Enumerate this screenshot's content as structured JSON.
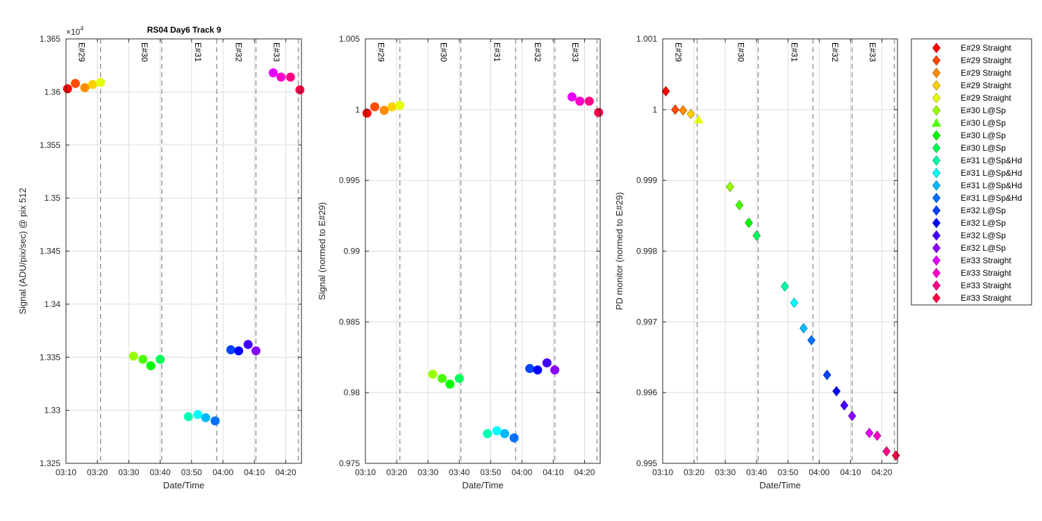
{
  "figure_title": "RS04 Day6 Track 9",
  "palette": [
    "#ff0000",
    "#ff4c00",
    "#ff8c00",
    "#ffd000",
    "#e6ff00",
    "#99ff00",
    "#4cff00",
    "#00ff00",
    "#00ff5a",
    "#00ffb0",
    "#00ffff",
    "#00b8ff",
    "#0070ff",
    "#0044ff",
    "#0000ff",
    "#4400ff",
    "#8800ff",
    "#e600ff",
    "#ff00cc",
    "#ff0088",
    "#ff0044"
  ],
  "chart_data": [
    {
      "type": "scatter",
      "title": "RS04 Day6 Track 9",
      "xlabel": "Date/Time",
      "ylabel": "Signal (ADU/pix/sec) @ pix 512",
      "exponent_label": "×10",
      "exponent_power": "4",
      "ylim": [
        1.325,
        1.365
      ],
      "yticks": [
        "1.325",
        "1.33",
        "1.335",
        "1.34",
        "1.345",
        "1.35",
        "1.355",
        "1.36",
        "1.365"
      ],
      "xlim": [
        "03:10",
        "04:25"
      ],
      "xticks": [
        "03:10",
        "03:20",
        "03:30",
        "03:40",
        "03:50",
        "04:00",
        "04:10",
        "04:20"
      ],
      "grid": true,
      "marker": "circle",
      "epochs": [
        {
          "label": "E#29",
          "label_time": "03:15",
          "boundary": "03:21"
        },
        {
          "label": "E#30",
          "label_time": "03:35",
          "boundary": "03:40.5"
        },
        {
          "label": "E#31",
          "label_time": "03:52",
          "boundary": "03:58"
        },
        {
          "label": "E#32",
          "label_time": "04:05",
          "boundary": "04:10.5"
        },
        {
          "label": "E#33",
          "label_time": "04:17",
          "boundary": "04:24"
        }
      ],
      "points": [
        {
          "t": "03:10.5",
          "y": 1.3603
        },
        {
          "t": "03:13",
          "y": 1.3608
        },
        {
          "t": "03:16",
          "y": 1.3604
        },
        {
          "t": "03:18.5",
          "y": 1.3607
        },
        {
          "t": "03:21",
          "y": 1.3609
        },
        {
          "t": "03:31.5",
          "y": 1.3351
        },
        {
          "t": "03:34.5",
          "y": 1.3348
        },
        {
          "t": "03:37",
          "y": 1.3342
        },
        {
          "t": "03:40",
          "y": 1.3348
        },
        {
          "t": "03:49",
          "y": 1.3294
        },
        {
          "t": "03:52",
          "y": 1.3296
        },
        {
          "t": "03:54.5",
          "y": 1.3293
        },
        {
          "t": "03:57.5",
          "y": 1.329
        },
        {
          "t": "04:02.5",
          "y": 1.3357
        },
        {
          "t": "04:05",
          "y": 1.3356
        },
        {
          "t": "04:08",
          "y": 1.3362
        },
        {
          "t": "04:10.5",
          "y": 1.3356
        },
        {
          "t": "04:16",
          "y": 1.3618
        },
        {
          "t": "04:18.5",
          "y": 1.3614
        },
        {
          "t": "04:21.5",
          "y": 1.3614
        },
        {
          "t": "04:24.5",
          "y": 1.3602
        }
      ]
    },
    {
      "type": "scatter",
      "xlabel": "Date/Time",
      "ylabel": "Signal (normed to E#29)",
      "ylim": [
        0.975,
        1.005
      ],
      "yticks": [
        "0.975",
        "0.98",
        "0.985",
        "0.99",
        "0.995",
        "1",
        "1.005"
      ],
      "xlim": [
        "03:10",
        "04:25"
      ],
      "xticks": [
        "03:10",
        "03:20",
        "03:30",
        "03:40",
        "03:50",
        "04:00",
        "04:10",
        "04:20"
      ],
      "grid": true,
      "marker": "circle",
      "epochs": [
        {
          "label": "E#29",
          "label_time": "03:15",
          "boundary": "03:21"
        },
        {
          "label": "E#30",
          "label_time": "03:35",
          "boundary": "03:40.5"
        },
        {
          "label": "E#31",
          "label_time": "03:52",
          "boundary": "03:58"
        },
        {
          "label": "E#32",
          "label_time": "04:05",
          "boundary": "04:10.5"
        },
        {
          "label": "E#33",
          "label_time": "04:17",
          "boundary": "04:24"
        }
      ],
      "points": [
        {
          "t": "03:10.5",
          "y": 0.99975
        },
        {
          "t": "03:13",
          "y": 1.0002
        },
        {
          "t": "03:16",
          "y": 0.99995
        },
        {
          "t": "03:18.5",
          "y": 1.0002
        },
        {
          "t": "03:21",
          "y": 1.0003
        },
        {
          "t": "03:31.5",
          "y": 0.9813
        },
        {
          "t": "03:34.5",
          "y": 0.981
        },
        {
          "t": "03:37",
          "y": 0.9806
        },
        {
          "t": "03:40",
          "y": 0.981
        },
        {
          "t": "03:49",
          "y": 0.9771
        },
        {
          "t": "03:52",
          "y": 0.9773
        },
        {
          "t": "03:54.5",
          "y": 0.9771
        },
        {
          "t": "03:57.5",
          "y": 0.9768
        },
        {
          "t": "04:02.5",
          "y": 0.9817
        },
        {
          "t": "04:05",
          "y": 0.9816
        },
        {
          "t": "04:08",
          "y": 0.9821
        },
        {
          "t": "04:10.5",
          "y": 0.9816
        },
        {
          "t": "04:16",
          "y": 1.0009
        },
        {
          "t": "04:18.5",
          "y": 1.0006
        },
        {
          "t": "04:21.5",
          "y": 1.0006
        },
        {
          "t": "04:24.5",
          "y": 0.9998
        }
      ]
    },
    {
      "type": "scatter",
      "xlabel": "Date/Time",
      "ylabel": "PD monitor (normed to E#29)",
      "ylim": [
        0.995,
        1.001
      ],
      "yticks": [
        "0.995",
        "0.996",
        "0.997",
        "0.998",
        "0.999",
        "1",
        "1.001"
      ],
      "xlim": [
        "03:10",
        "04:25"
      ],
      "xticks": [
        "03:10",
        "03:20",
        "03:30",
        "03:40",
        "03:50",
        "04:00",
        "04:10",
        "04:20"
      ],
      "grid": true,
      "marker": "diamond",
      "epochs": [
        {
          "label": "E#29",
          "label_time": "03:15",
          "boundary": "03:21"
        },
        {
          "label": "E#30",
          "label_time": "03:35",
          "boundary": "03:40.5"
        },
        {
          "label": "E#31",
          "label_time": "03:52",
          "boundary": "03:58"
        },
        {
          "label": "E#32",
          "label_time": "04:05",
          "boundary": "04:10.5"
        },
        {
          "label": "E#33",
          "label_time": "04:17",
          "boundary": "04:24"
        }
      ],
      "points": [
        {
          "t": "03:11",
          "y": 1.00026
        },
        {
          "t": "03:14",
          "y": 1.0
        },
        {
          "t": "03:16.5",
          "y": 0.99999
        },
        {
          "t": "03:19",
          "y": 0.99994
        },
        {
          "t": "03:21.5",
          "y": 0.99986,
          "marker": "triangle"
        },
        {
          "t": "03:31.5",
          "y": 0.99891
        },
        {
          "t": "03:34.5",
          "y": 0.99865
        },
        {
          "t": "03:37.5",
          "y": 0.9984
        },
        {
          "t": "03:40",
          "y": 0.99822
        },
        {
          "t": "03:49",
          "y": 0.9975
        },
        {
          "t": "03:52",
          "y": 0.99727
        },
        {
          "t": "03:55",
          "y": 0.99691
        },
        {
          "t": "03:57.5",
          "y": 0.99674
        },
        {
          "t": "04:02.5",
          "y": 0.99625
        },
        {
          "t": "04:05.5",
          "y": 0.99602
        },
        {
          "t": "04:08",
          "y": 0.99582
        },
        {
          "t": "04:10.5",
          "y": 0.99567
        },
        {
          "t": "04:16",
          "y": 0.99543
        },
        {
          "t": "04:18.5",
          "y": 0.99539
        },
        {
          "t": "04:21.5",
          "y": 0.99517
        },
        {
          "t": "04:24.5",
          "y": 0.99511
        }
      ]
    }
  ],
  "legend": {
    "placement": "right",
    "entries": [
      {
        "label": "E#29 Straight",
        "marker": "diamond"
      },
      {
        "label": "E#29 Straight",
        "marker": "diamond"
      },
      {
        "label": "E#29 Straight",
        "marker": "diamond"
      },
      {
        "label": "E#29 Straight",
        "marker": "diamond"
      },
      {
        "label": "E#29 Straight",
        "marker": "diamond"
      },
      {
        "label": "E#30 L@Sp",
        "marker": "diamond"
      },
      {
        "label": "E#30 L@Sp",
        "marker": "triangle"
      },
      {
        "label": "E#30 L@Sp",
        "marker": "diamond"
      },
      {
        "label": "E#30 L@Sp",
        "marker": "diamond"
      },
      {
        "label": "E#31 L@Sp&Hd",
        "marker": "diamond"
      },
      {
        "label": "E#31 L@Sp&Hd",
        "marker": "diamond"
      },
      {
        "label": "E#31 L@Sp&Hd",
        "marker": "diamond"
      },
      {
        "label": "E#31 L@Sp&Hd",
        "marker": "diamond"
      },
      {
        "label": "E#32 L@Sp",
        "marker": "diamond"
      },
      {
        "label": "E#32 L@Sp",
        "marker": "diamond"
      },
      {
        "label": "E#32 L@Sp",
        "marker": "diamond"
      },
      {
        "label": "E#32 L@Sp",
        "marker": "diamond"
      },
      {
        "label": "E#33 Straight",
        "marker": "diamond"
      },
      {
        "label": "E#33 Straight",
        "marker": "diamond"
      },
      {
        "label": "E#33 Straight",
        "marker": "diamond"
      },
      {
        "label": "E#33 Straight",
        "marker": "diamond"
      }
    ]
  }
}
